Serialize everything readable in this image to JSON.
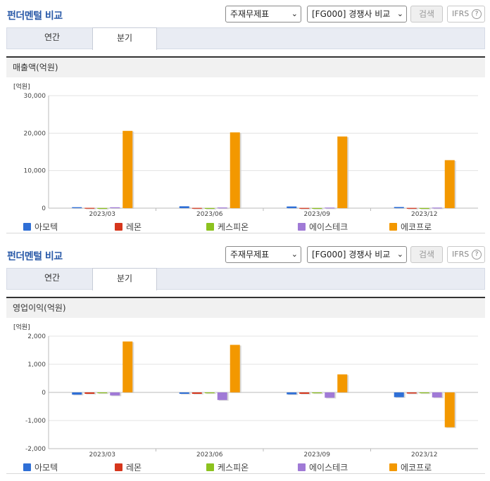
{
  "panels": [
    {
      "title": "펀더멘털 비교",
      "select_statement": "주재무제표",
      "select_compare": "[FG000] 경쟁사 비교",
      "search_label": "검색",
      "ifrs_label": "IFRS",
      "help_glyph": "?",
      "tabs": [
        {
          "label": "연간",
          "active": false
        },
        {
          "label": "분기",
          "active": true
        }
      ],
      "subheading": "매출액(억원)"
    },
    {
      "title": "펀더멘털 비교",
      "select_statement": "주재무제표",
      "select_compare": "[FG000] 경쟁사 비교",
      "search_label": "검색",
      "ifrs_label": "IFRS",
      "help_glyph": "?",
      "tabs": [
        {
          "label": "연간",
          "active": false
        },
        {
          "label": "분기",
          "active": true
        }
      ],
      "subheading": "영업이익(억원)"
    }
  ],
  "chart_data": [
    {
      "type": "bar",
      "unit_label": "[억원]",
      "categories": [
        "2023/03",
        "2023/06",
        "2023/09",
        "2023/12"
      ],
      "ylim": [
        0,
        30000
      ],
      "yticks": [
        0,
        10000,
        20000,
        30000
      ],
      "ytick_labels": [
        "0",
        "10,000",
        "20,000",
        "30,000"
      ],
      "grid": true,
      "legend_position": "bottom",
      "series": [
        {
          "name": "아모텍",
          "color": "#2f6fd6",
          "values": [
            250,
            500,
            450,
            300
          ]
        },
        {
          "name": "레몬",
          "color": "#d6361c",
          "values": [
            80,
            70,
            60,
            60
          ]
        },
        {
          "name": "케스피온",
          "color": "#8cc21f",
          "values": [
            40,
            40,
            40,
            40
          ]
        },
        {
          "name": "에이스테크",
          "color": "#a07ad6",
          "values": [
            230,
            180,
            150,
            150
          ]
        },
        {
          "name": "에코프로",
          "color": "#f39800",
          "values": [
            20600,
            20200,
            19100,
            12800
          ]
        }
      ]
    },
    {
      "type": "bar",
      "unit_label": "[억원]",
      "categories": [
        "2023/03",
        "2023/06",
        "2023/09",
        "2023/12"
      ],
      "ylim": [
        -2000,
        2000
      ],
      "yticks": [
        -2000,
        -1000,
        0,
        1000,
        2000
      ],
      "ytick_labels": [
        "-2,000",
        "-1,000",
        "0",
        "1,000",
        "2,000"
      ],
      "grid": true,
      "legend_position": "bottom",
      "series": [
        {
          "name": "아모텍",
          "color": "#2f6fd6",
          "values": [
            -80,
            -50,
            -70,
            -170
          ]
        },
        {
          "name": "레몬",
          "color": "#d6361c",
          "values": [
            -50,
            -50,
            -50,
            -40
          ]
        },
        {
          "name": "케스피온",
          "color": "#8cc21f",
          "values": [
            -20,
            -10,
            -10,
            -10
          ]
        },
        {
          "name": "에이스테크",
          "color": "#a07ad6",
          "values": [
            -110,
            -270,
            -190,
            -180
          ]
        },
        {
          "name": "에코프로",
          "color": "#f39800",
          "values": [
            1810,
            1690,
            640,
            -1240
          ]
        }
      ]
    }
  ]
}
